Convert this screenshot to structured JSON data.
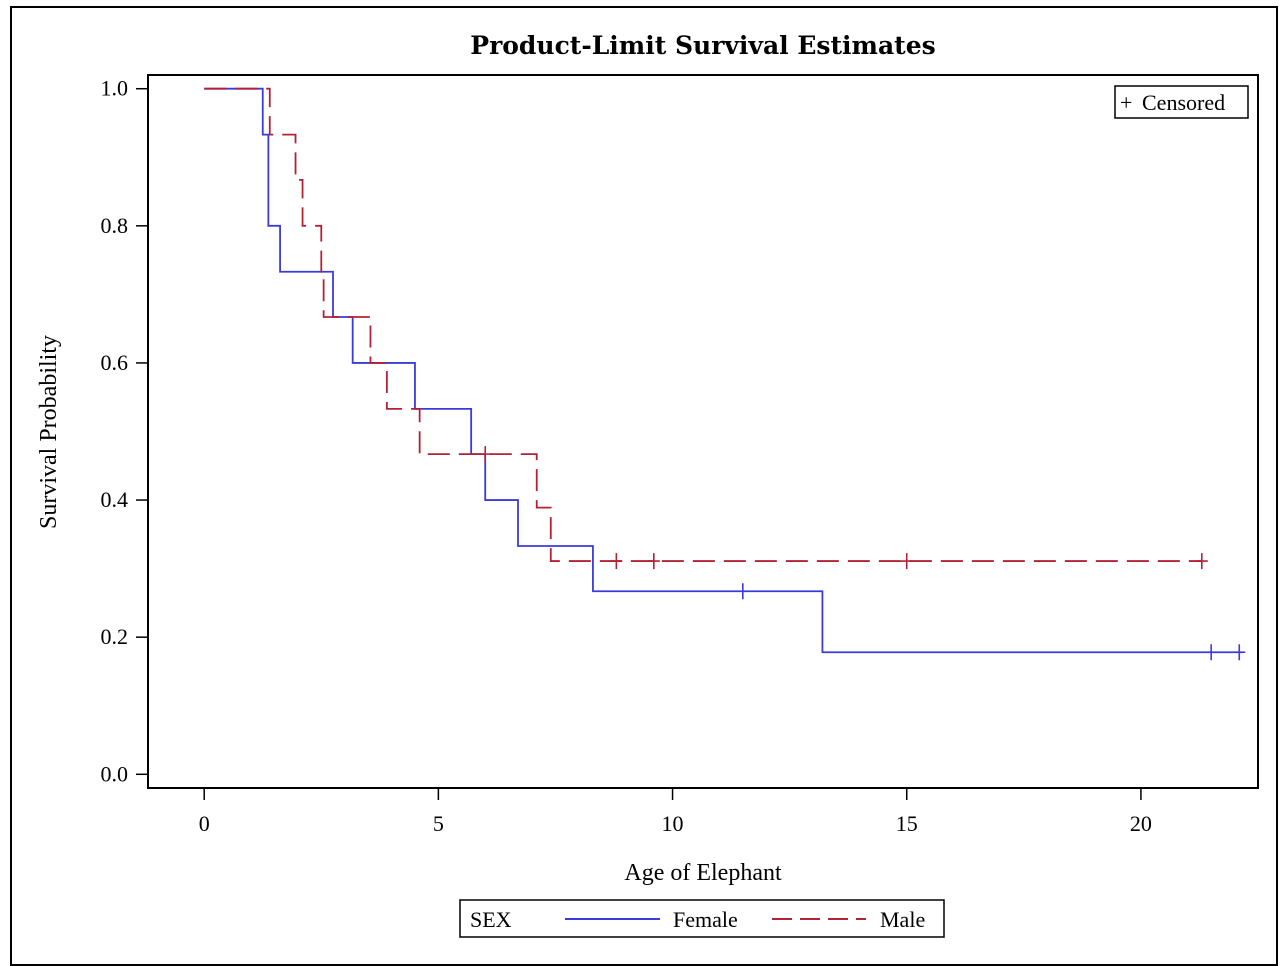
{
  "chart_data": {
    "type": "line",
    "title": "Product-Limit Survival Estimates",
    "xlabel": "Age of Elephant",
    "ylabel": "Survival Probability",
    "xlim": [
      -1.2,
      22.5
    ],
    "ylim": [
      -0.02,
      1.02
    ],
    "x_ticks": [
      0,
      5,
      10,
      15,
      20
    ],
    "x_tick_labels": [
      "0",
      "5",
      "10",
      "15",
      "20"
    ],
    "y_ticks": [
      0.0,
      0.2,
      0.4,
      0.6,
      0.8,
      1.0
    ],
    "y_tick_labels": [
      "0.0",
      "0.2",
      "0.4",
      "0.6",
      "0.8",
      "1.0"
    ],
    "grid": false,
    "censored_inset_label": "Censored",
    "censored_inset_symbol": "+",
    "legend": {
      "title": "SEX",
      "placement": "bottom"
    },
    "series": [
      {
        "name": "Female",
        "color": "#3b3bdc",
        "dash": "solid",
        "steps": [
          [
            0,
            1.0
          ],
          [
            1.25,
            0.933
          ],
          [
            1.37,
            0.8
          ],
          [
            1.62,
            0.733
          ],
          [
            2.75,
            0.667
          ],
          [
            3.17,
            0.6
          ],
          [
            4.5,
            0.533
          ],
          [
            5.7,
            0.467
          ],
          [
            6.0,
            0.4
          ],
          [
            6.7,
            0.333
          ],
          [
            8.3,
            0.267
          ],
          [
            13.2,
            0.178
          ]
        ],
        "end_x": 22.2,
        "censored": [
          [
            11.5,
            0.267
          ],
          [
            21.5,
            0.178
          ],
          [
            22.1,
            0.178
          ]
        ]
      },
      {
        "name": "Male",
        "color": "#b22234",
        "dash": "dashed",
        "steps": [
          [
            0,
            1.0
          ],
          [
            1.4,
            0.933
          ],
          [
            1.95,
            0.867
          ],
          [
            2.1,
            0.8
          ],
          [
            2.5,
            0.733
          ],
          [
            2.55,
            0.667
          ],
          [
            3.55,
            0.6
          ],
          [
            3.9,
            0.533
          ],
          [
            4.6,
            0.467
          ],
          [
            7.1,
            0.389
          ],
          [
            7.4,
            0.311
          ]
        ],
        "end_x": 21.3,
        "censored": [
          [
            6.0,
            0.467
          ],
          [
            8.8,
            0.311
          ],
          [
            9.6,
            0.311
          ],
          [
            15.0,
            0.311
          ],
          [
            21.3,
            0.311
          ]
        ]
      }
    ]
  }
}
